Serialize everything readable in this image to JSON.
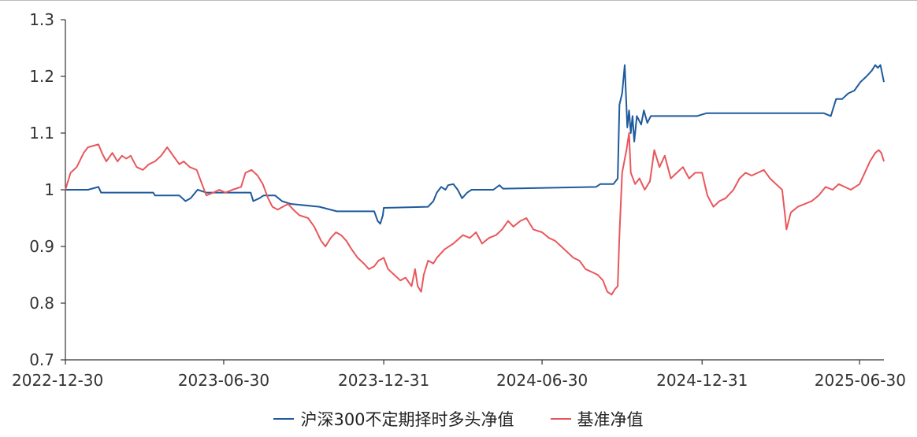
{
  "chart_data": {
    "type": "line",
    "title": "",
    "xlabel": "",
    "ylabel": "",
    "ylim": [
      0.7,
      1.3
    ],
    "yticks": [
      "0.7",
      "0.8",
      "0.9",
      "1",
      "1.1",
      "1.2",
      "1.3"
    ],
    "xticks": [
      "2022-12-30",
      "2023-06-30",
      "2023-12-31",
      "2024-06-30",
      "2024-12-31",
      "2025-06-30"
    ],
    "grid": false,
    "legend": "bottom",
    "series": [
      {
        "name": "沪深300不定期择时多头净值",
        "color": "#1f5a9c",
        "points": [
          [
            "2022-12-30",
            1.0
          ],
          [
            "2023-01-25",
            1.0
          ],
          [
            "2023-02-06",
            1.005
          ],
          [
            "2023-02-09",
            0.995
          ],
          [
            "2023-04-10",
            0.995
          ],
          [
            "2023-04-12",
            0.99
          ],
          [
            "2023-05-10",
            0.99
          ],
          [
            "2023-05-17",
            0.98
          ],
          [
            "2023-05-23",
            0.985
          ],
          [
            "2023-05-31",
            1.0
          ],
          [
            "2023-06-10",
            0.995
          ],
          [
            "2023-07-01",
            0.995
          ],
          [
            "2023-07-31",
            0.995
          ],
          [
            "2023-08-03",
            0.98
          ],
          [
            "2023-08-10",
            0.985
          ],
          [
            "2023-08-15",
            0.99
          ],
          [
            "2023-08-28",
            0.99
          ],
          [
            "2023-09-05",
            0.98
          ],
          [
            "2023-09-15",
            0.975
          ],
          [
            "2023-10-18",
            0.97
          ],
          [
            "2023-11-07",
            0.962
          ],
          [
            "2023-12-20",
            0.962
          ],
          [
            "2023-12-24",
            0.945
          ],
          [
            "2023-12-27",
            0.94
          ],
          [
            "2023-12-30",
            0.955
          ],
          [
            "2023-12-31",
            0.968
          ],
          [
            "2024-02-20",
            0.97
          ],
          [
            "2024-02-26",
            0.98
          ],
          [
            "2024-03-01",
            0.995
          ],
          [
            "2024-03-06",
            1.005
          ],
          [
            "2024-03-11",
            1.0
          ],
          [
            "2024-03-14",
            1.008
          ],
          [
            "2024-03-20",
            1.01
          ],
          [
            "2024-03-25",
            1.0
          ],
          [
            "2024-03-30",
            0.985
          ],
          [
            "2024-04-05",
            0.995
          ],
          [
            "2024-04-10",
            1.0
          ],
          [
            "2024-05-05",
            1.0
          ],
          [
            "2024-05-12",
            1.008
          ],
          [
            "2024-05-16",
            1.002
          ],
          [
            "2024-08-31",
            1.005
          ],
          [
            "2024-09-05",
            1.01
          ],
          [
            "2024-09-20",
            1.01
          ],
          [
            "2024-09-25",
            1.02
          ],
          [
            "2024-09-27",
            1.15
          ],
          [
            "2024-09-30",
            1.17
          ],
          [
            "2024-10-03",
            1.22
          ],
          [
            "2024-10-06",
            1.11
          ],
          [
            "2024-10-08",
            1.14
          ],
          [
            "2024-10-10",
            1.1
          ],
          [
            "2024-10-12",
            1.13
          ],
          [
            "2024-10-14",
            1.085
          ],
          [
            "2024-10-17",
            1.13
          ],
          [
            "2024-10-22",
            1.115
          ],
          [
            "2024-10-25",
            1.14
          ],
          [
            "2024-10-29",
            1.118
          ],
          [
            "2024-11-02",
            1.13
          ],
          [
            "2024-12-25",
            1.13
          ],
          [
            "2025-01-05",
            1.135
          ],
          [
            "2025-05-20",
            1.135
          ],
          [
            "2025-05-28",
            1.13
          ],
          [
            "2025-06-03",
            1.16
          ],
          [
            "2025-06-10",
            1.16
          ],
          [
            "2025-06-17",
            1.17
          ],
          [
            "2025-06-24",
            1.175
          ],
          [
            "2025-07-01",
            1.19
          ],
          [
            "2025-07-08",
            1.2
          ],
          [
            "2025-07-14",
            1.21
          ],
          [
            "2025-07-18",
            1.22
          ],
          [
            "2025-07-21",
            1.215
          ],
          [
            "2025-07-24",
            1.22
          ],
          [
            "2025-07-28",
            1.19
          ]
        ]
      },
      {
        "name": "基准净值",
        "color": "#e8575c",
        "points": [
          [
            "2022-12-30",
            1.0
          ],
          [
            "2023-01-05",
            1.03
          ],
          [
            "2023-01-12",
            1.04
          ],
          [
            "2023-01-20",
            1.065
          ],
          [
            "2023-01-25",
            1.075
          ],
          [
            "2023-02-06",
            1.08
          ],
          [
            "2023-02-10",
            1.065
          ],
          [
            "2023-02-15",
            1.05
          ],
          [
            "2023-02-22",
            1.065
          ],
          [
            "2023-02-28",
            1.05
          ],
          [
            "2023-03-05",
            1.06
          ],
          [
            "2023-03-10",
            1.055
          ],
          [
            "2023-03-15",
            1.06
          ],
          [
            "2023-03-22",
            1.04
          ],
          [
            "2023-03-29",
            1.035
          ],
          [
            "2023-04-05",
            1.045
          ],
          [
            "2023-04-12",
            1.05
          ],
          [
            "2023-04-19",
            1.06
          ],
          [
            "2023-04-26",
            1.075
          ],
          [
            "2023-05-03",
            1.06
          ],
          [
            "2023-05-10",
            1.045
          ],
          [
            "2023-05-15",
            1.05
          ],
          [
            "2023-05-22",
            1.04
          ],
          [
            "2023-05-30",
            1.035
          ],
          [
            "2023-06-05",
            1.01
          ],
          [
            "2023-06-10",
            0.99
          ],
          [
            "2023-06-18",
            0.995
          ],
          [
            "2023-06-25",
            1.0
          ],
          [
            "2023-07-02",
            0.995
          ],
          [
            "2023-07-10",
            1.0
          ],
          [
            "2023-07-20",
            1.005
          ],
          [
            "2023-07-25",
            1.03
          ],
          [
            "2023-08-01",
            1.035
          ],
          [
            "2023-08-08",
            1.025
          ],
          [
            "2023-08-14",
            1.01
          ],
          [
            "2023-08-20",
            0.985
          ],
          [
            "2023-08-25",
            0.97
          ],
          [
            "2023-08-31",
            0.965
          ],
          [
            "2023-09-06",
            0.97
          ],
          [
            "2023-09-12",
            0.975
          ],
          [
            "2023-09-18",
            0.965
          ],
          [
            "2023-09-25",
            0.955
          ],
          [
            "2023-10-05",
            0.95
          ],
          [
            "2023-10-12",
            0.935
          ],
          [
            "2023-10-20",
            0.91
          ],
          [
            "2023-10-25",
            0.9
          ],
          [
            "2023-10-31",
            0.915
          ],
          [
            "2023-11-06",
            0.925
          ],
          [
            "2023-11-12",
            0.92
          ],
          [
            "2023-11-18",
            0.91
          ],
          [
            "2023-11-24",
            0.895
          ],
          [
            "2023-12-01",
            0.88
          ],
          [
            "2023-12-08",
            0.87
          ],
          [
            "2023-12-14",
            0.86
          ],
          [
            "2023-12-20",
            0.865
          ],
          [
            "2023-12-25",
            0.875
          ],
          [
            "2023-12-31",
            0.88
          ],
          [
            "2024-01-05",
            0.86
          ],
          [
            "2024-01-12",
            0.85
          ],
          [
            "2024-01-19",
            0.84
          ],
          [
            "2024-01-25",
            0.845
          ],
          [
            "2024-02-01",
            0.83
          ],
          [
            "2024-02-05",
            0.86
          ],
          [
            "2024-02-08",
            0.83
          ],
          [
            "2024-02-12",
            0.82
          ],
          [
            "2024-02-15",
            0.85
          ],
          [
            "2024-02-20",
            0.875
          ],
          [
            "2024-02-26",
            0.87
          ],
          [
            "2024-03-01",
            0.88
          ],
          [
            "2024-03-10",
            0.895
          ],
          [
            "2024-03-20",
            0.905
          ],
          [
            "2024-03-31",
            0.92
          ],
          [
            "2024-04-08",
            0.915
          ],
          [
            "2024-04-15",
            0.925
          ],
          [
            "2024-04-22",
            0.905
          ],
          [
            "2024-04-30",
            0.915
          ],
          [
            "2024-05-08",
            0.92
          ],
          [
            "2024-05-15",
            0.93
          ],
          [
            "2024-05-22",
            0.945
          ],
          [
            "2024-05-28",
            0.935
          ],
          [
            "2024-06-05",
            0.945
          ],
          [
            "2024-06-12",
            0.95
          ],
          [
            "2024-06-20",
            0.93
          ],
          [
            "2024-06-30",
            0.925
          ],
          [
            "2024-07-08",
            0.915
          ],
          [
            "2024-07-15",
            0.91
          ],
          [
            "2024-07-22",
            0.9
          ],
          [
            "2024-07-29",
            0.89
          ],
          [
            "2024-08-05",
            0.88
          ],
          [
            "2024-08-12",
            0.875
          ],
          [
            "2024-08-19",
            0.86
          ],
          [
            "2024-08-26",
            0.855
          ],
          [
            "2024-09-02",
            0.85
          ],
          [
            "2024-09-08",
            0.84
          ],
          [
            "2024-09-13",
            0.82
          ],
          [
            "2024-09-18",
            0.815
          ],
          [
            "2024-09-22",
            0.825
          ],
          [
            "2024-09-25",
            0.83
          ],
          [
            "2024-09-27",
            0.92
          ],
          [
            "2024-09-30",
            1.03
          ],
          [
            "2024-10-05",
            1.07
          ],
          [
            "2024-10-08",
            1.1
          ],
          [
            "2024-10-10",
            1.03
          ],
          [
            "2024-10-15",
            1.01
          ],
          [
            "2024-10-20",
            1.02
          ],
          [
            "2024-10-26",
            1.0
          ],
          [
            "2024-11-01",
            1.015
          ],
          [
            "2024-11-06",
            1.07
          ],
          [
            "2024-11-12",
            1.04
          ],
          [
            "2024-11-18",
            1.06
          ],
          [
            "2024-11-25",
            1.02
          ],
          [
            "2024-12-02",
            1.03
          ],
          [
            "2024-12-09",
            1.04
          ],
          [
            "2024-12-16",
            1.02
          ],
          [
            "2024-12-23",
            1.03
          ],
          [
            "2024-12-31",
            1.03
          ],
          [
            "2025-01-06",
            0.99
          ],
          [
            "2025-01-13",
            0.97
          ],
          [
            "2025-01-20",
            0.98
          ],
          [
            "2025-01-27",
            0.985
          ],
          [
            "2025-02-05",
            1.0
          ],
          [
            "2025-02-12",
            1.02
          ],
          [
            "2025-02-19",
            1.03
          ],
          [
            "2025-02-26",
            1.025
          ],
          [
            "2025-03-05",
            1.03
          ],
          [
            "2025-03-12",
            1.035
          ],
          [
            "2025-03-19",
            1.02
          ],
          [
            "2025-03-26",
            1.01
          ],
          [
            "2025-04-02",
            1.0
          ],
          [
            "2025-04-05",
            0.96
          ],
          [
            "2025-04-07",
            0.93
          ],
          [
            "2025-04-12",
            0.96
          ],
          [
            "2025-04-20",
            0.97
          ],
          [
            "2025-04-28",
            0.975
          ],
          [
            "2025-05-06",
            0.98
          ],
          [
            "2025-05-14",
            0.99
          ],
          [
            "2025-05-22",
            1.005
          ],
          [
            "2025-05-30",
            1.0
          ],
          [
            "2025-06-06",
            1.01
          ],
          [
            "2025-06-13",
            1.005
          ],
          [
            "2025-06-20",
            1.0
          ],
          [
            "2025-06-30",
            1.01
          ],
          [
            "2025-07-06",
            1.03
          ],
          [
            "2025-07-12",
            1.05
          ],
          [
            "2025-07-18",
            1.065
          ],
          [
            "2025-07-22",
            1.07
          ],
          [
            "2025-07-25",
            1.065
          ],
          [
            "2025-07-28",
            1.05
          ]
        ]
      }
    ]
  }
}
